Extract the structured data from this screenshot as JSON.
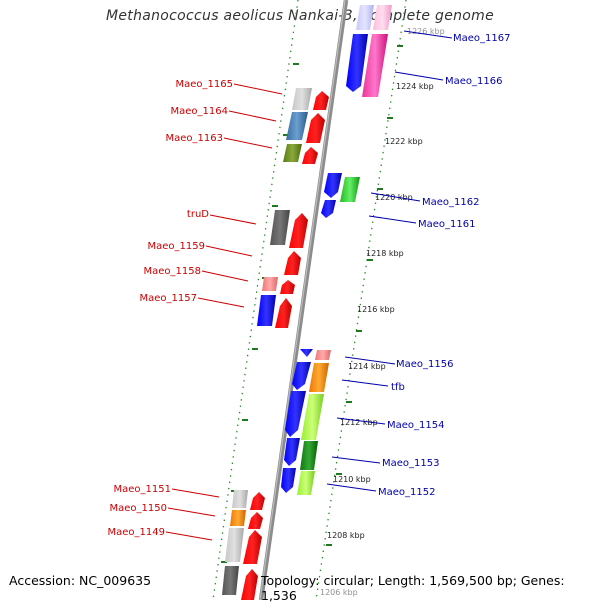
{
  "title": "Methanococcus aeolicus Nankai-3, complete genome",
  "footer": {
    "accession": "Accession: NC_009635",
    "topology": "Topology: circular; Length: 1,569,500 bp; Genes: 1,536"
  },
  "colors": {
    "left_label": "#cc0000",
    "right_label": "#0000aa",
    "backbone": "#888888",
    "tick_green": "#228b22"
  },
  "kbp_labels": [
    {
      "text": "1226 kbp",
      "faded": true
    },
    {
      "text": "1224 kbp"
    },
    {
      "text": "1222 kbp"
    },
    {
      "text": "1220 kbp"
    },
    {
      "text": "1218 kbp"
    },
    {
      "text": "1216 kbp"
    },
    {
      "text": "1214 kbp"
    },
    {
      "text": "1212 kbp"
    },
    {
      "text": "1210 kbp"
    },
    {
      "text": "1208 kbp"
    },
    {
      "text": "1206 kbp",
      "faded": true
    }
  ],
  "left_genes": [
    "Maeo_1165",
    "Maeo_1164",
    "Maeo_1163",
    "truD",
    "Maeo_1159",
    "Maeo_1158",
    "Maeo_1157",
    "Maeo_1151",
    "Maeo_1150",
    "Maeo_1149"
  ],
  "right_genes": [
    "Maeo_1167",
    "Maeo_1166",
    "Maeo_1162",
    "Maeo_1161",
    "Maeo_1156",
    "tfb",
    "Maeo_1154",
    "Maeo_1153",
    "Maeo_1152"
  ]
}
